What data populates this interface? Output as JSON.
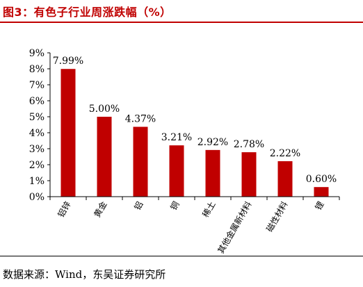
{
  "figure": {
    "title": "图3：有色子行业周涨跌幅（%）",
    "source": "数据来源：Wind，东吴证券研究所"
  },
  "colors": {
    "bar": "#c00000",
    "title": "#c00000",
    "axis": "#000000"
  },
  "chart_data": {
    "type": "bar",
    "categories": [
      "铝锌",
      "黄金",
      "铝",
      "铜",
      "稀土",
      "其他金属新材料",
      "磁性材料",
      "锂"
    ],
    "values": [
      7.99,
      5.0,
      4.37,
      3.21,
      2.92,
      2.78,
      2.22,
      0.6
    ],
    "data_labels": [
      "7.99%",
      "5.00%",
      "4.37%",
      "3.21%",
      "2.92%",
      "2.78%",
      "2.22%",
      "0.60%"
    ],
    "y_ticks": [
      0,
      1,
      2,
      3,
      4,
      5,
      6,
      7,
      8,
      9
    ],
    "y_tick_labels": [
      "0%",
      "1%",
      "2%",
      "3%",
      "4%",
      "5%",
      "6%",
      "7%",
      "8%",
      "9%"
    ],
    "ylim": [
      0,
      9
    ],
    "grid": false,
    "legend": false
  }
}
